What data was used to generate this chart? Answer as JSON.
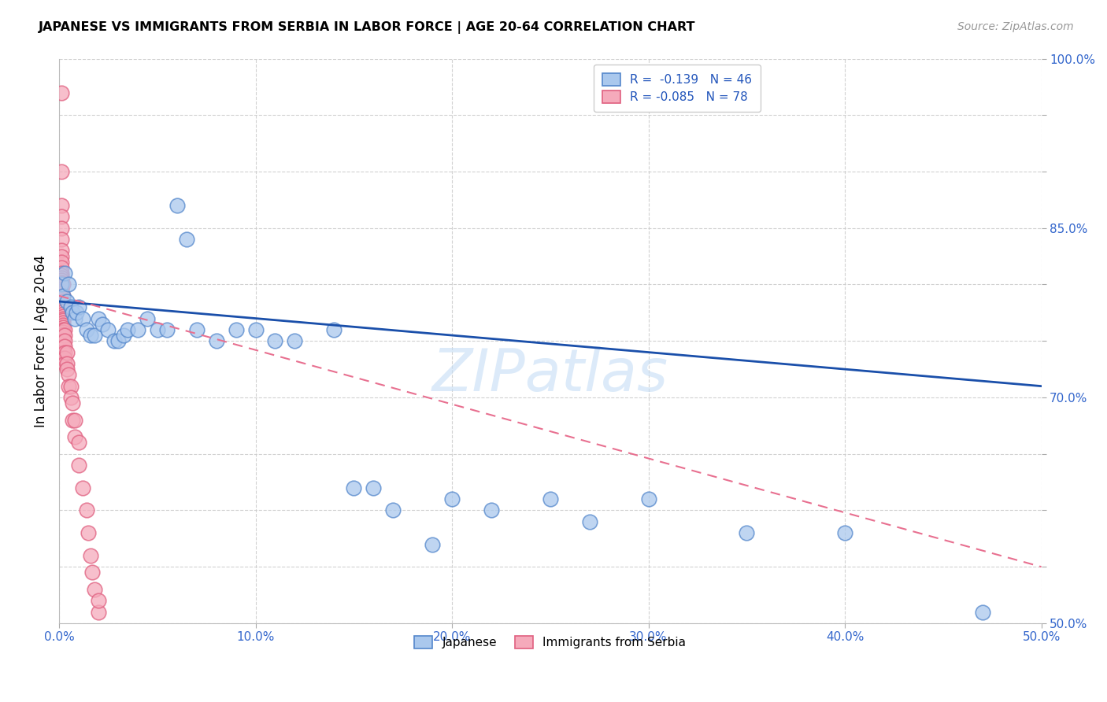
{
  "title": "JAPANESE VS IMMIGRANTS FROM SERBIA IN LABOR FORCE | AGE 20-64 CORRELATION CHART",
  "source": "Source: ZipAtlas.com",
  "ylabel": "In Labor Force | Age 20-64",
  "xlim": [
    0.0,
    0.5
  ],
  "ylim": [
    0.5,
    1.0
  ],
  "xticks": [
    0.0,
    0.1,
    0.2,
    0.3,
    0.4,
    0.5
  ],
  "xticklabels": [
    "0.0%",
    "10.0%",
    "20.0%",
    "30.0%",
    "40.0%",
    "50.0%"
  ],
  "yticks": [
    0.5,
    0.55,
    0.6,
    0.65,
    0.7,
    0.75,
    0.8,
    0.85,
    0.9,
    0.95,
    1.0
  ],
  "yticklabels": [
    "50.0%",
    "",
    "",
    "",
    "70.0%",
    "",
    "",
    "85.0%",
    "",
    "",
    "100.0%"
  ],
  "legend_blue_label": "R =  -0.139   N = 46",
  "legend_pink_label": "R = -0.085   N = 78",
  "legend_bottom_blue": "Japanese",
  "legend_bottom_pink": "Immigrants from Serbia",
  "blue_color": "#aac8ed",
  "pink_color": "#f5aabb",
  "blue_edge": "#5588cc",
  "pink_edge": "#e06080",
  "blue_trend_color": "#1a4faa",
  "pink_trend_color": "#e87090",
  "japanese_x": [
    0.001,
    0.002,
    0.003,
    0.004,
    0.005,
    0.006,
    0.007,
    0.008,
    0.009,
    0.01,
    0.012,
    0.014,
    0.016,
    0.018,
    0.02,
    0.022,
    0.025,
    0.028,
    0.03,
    0.033,
    0.035,
    0.04,
    0.045,
    0.05,
    0.055,
    0.06,
    0.065,
    0.07,
    0.08,
    0.09,
    0.1,
    0.11,
    0.12,
    0.14,
    0.15,
    0.16,
    0.17,
    0.19,
    0.2,
    0.22,
    0.25,
    0.27,
    0.3,
    0.35,
    0.4,
    0.47
  ],
  "japanese_y": [
    0.8,
    0.79,
    0.81,
    0.785,
    0.8,
    0.78,
    0.775,
    0.77,
    0.775,
    0.78,
    0.77,
    0.76,
    0.755,
    0.755,
    0.77,
    0.765,
    0.76,
    0.75,
    0.75,
    0.755,
    0.76,
    0.76,
    0.77,
    0.76,
    0.76,
    0.87,
    0.84,
    0.76,
    0.75,
    0.76,
    0.76,
    0.75,
    0.75,
    0.76,
    0.62,
    0.62,
    0.6,
    0.57,
    0.61,
    0.6,
    0.61,
    0.59,
    0.61,
    0.58,
    0.58,
    0.51
  ],
  "serbia_x": [
    0.001,
    0.001,
    0.001,
    0.001,
    0.001,
    0.001,
    0.001,
    0.001,
    0.001,
    0.001,
    0.001,
    0.001,
    0.001,
    0.001,
    0.001,
    0.001,
    0.001,
    0.001,
    0.001,
    0.001,
    0.001,
    0.001,
    0.001,
    0.001,
    0.001,
    0.001,
    0.001,
    0.001,
    0.001,
    0.001,
    0.002,
    0.002,
    0.002,
    0.002,
    0.002,
    0.002,
    0.002,
    0.002,
    0.002,
    0.002,
    0.002,
    0.002,
    0.002,
    0.002,
    0.002,
    0.002,
    0.002,
    0.002,
    0.002,
    0.002,
    0.003,
    0.003,
    0.003,
    0.003,
    0.003,
    0.003,
    0.003,
    0.004,
    0.004,
    0.004,
    0.005,
    0.005,
    0.006,
    0.006,
    0.007,
    0.007,
    0.008,
    0.008,
    0.01,
    0.01,
    0.012,
    0.014,
    0.015,
    0.016,
    0.017,
    0.018,
    0.02,
    0.02
  ],
  "serbia_y": [
    0.97,
    0.9,
    0.87,
    0.86,
    0.85,
    0.84,
    0.83,
    0.825,
    0.82,
    0.815,
    0.81,
    0.808,
    0.806,
    0.804,
    0.802,
    0.8,
    0.798,
    0.796,
    0.794,
    0.792,
    0.79,
    0.788,
    0.786,
    0.784,
    0.782,
    0.78,
    0.778,
    0.776,
    0.774,
    0.772,
    0.8,
    0.79,
    0.785,
    0.78,
    0.778,
    0.776,
    0.774,
    0.772,
    0.77,
    0.768,
    0.766,
    0.764,
    0.762,
    0.76,
    0.758,
    0.756,
    0.75,
    0.745,
    0.74,
    0.735,
    0.76,
    0.755,
    0.75,
    0.745,
    0.74,
    0.735,
    0.73,
    0.74,
    0.73,
    0.725,
    0.72,
    0.71,
    0.71,
    0.7,
    0.695,
    0.68,
    0.68,
    0.665,
    0.66,
    0.64,
    0.62,
    0.6,
    0.58,
    0.56,
    0.545,
    0.53,
    0.51,
    0.52
  ],
  "blue_trend_y0": 0.785,
  "blue_trend_y1": 0.71,
  "pink_trend_y0": 0.79,
  "pink_trend_y1": 0.55
}
